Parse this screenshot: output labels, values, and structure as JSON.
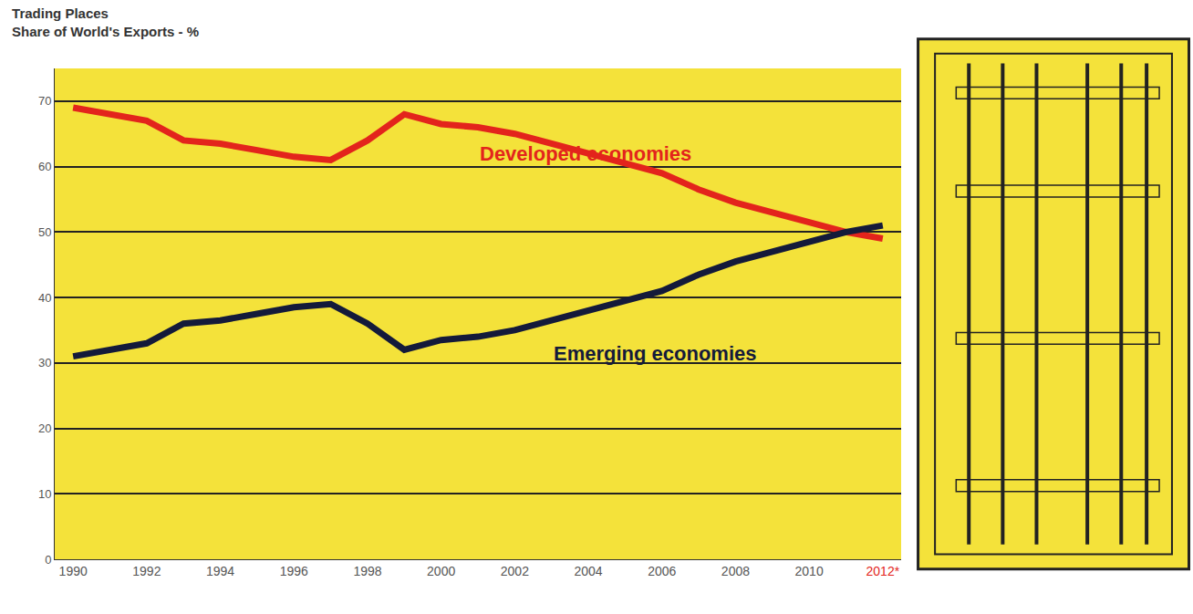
{
  "chart_data": {
    "type": "line",
    "title": "Trading Places",
    "subtitle": "Share of World's Exports - %",
    "x": [
      1990,
      1991,
      1992,
      1993,
      1994,
      1995,
      1996,
      1997,
      1998,
      1999,
      2000,
      2001,
      2002,
      2003,
      2004,
      2005,
      2006,
      2007,
      2008,
      2009,
      2010,
      2011,
      2012
    ],
    "series": [
      {
        "name": "Developed economies",
        "color": "#e3241c",
        "values": [
          69,
          68,
          67,
          64,
          63.5,
          62.5,
          61.5,
          61,
          64,
          68,
          66.5,
          66,
          65,
          63.5,
          62,
          60.5,
          59,
          56.5,
          54.5,
          53,
          51.5,
          50,
          49
        ]
      },
      {
        "name": "Emerging economies",
        "color": "#141a3a",
        "values": [
          31,
          32,
          33,
          36,
          36.5,
          37.5,
          38.5,
          39,
          36,
          32,
          33.5,
          34,
          35,
          36.5,
          38,
          39.5,
          41,
          43.5,
          45.5,
          47,
          48.5,
          50,
          51
        ]
      }
    ],
    "xlim": [
      1989.5,
      2012.5
    ],
    "xticks": [
      1990,
      1992,
      1994,
      1996,
      1998,
      2000,
      2002,
      2004,
      2006,
      2008,
      2010,
      {
        "value": 2012,
        "label": "2012*"
      }
    ],
    "ylim": [
      0,
      75
    ],
    "yticks": [
      0,
      10,
      20,
      30,
      40,
      50,
      60,
      70
    ],
    "grid": true
  }
}
